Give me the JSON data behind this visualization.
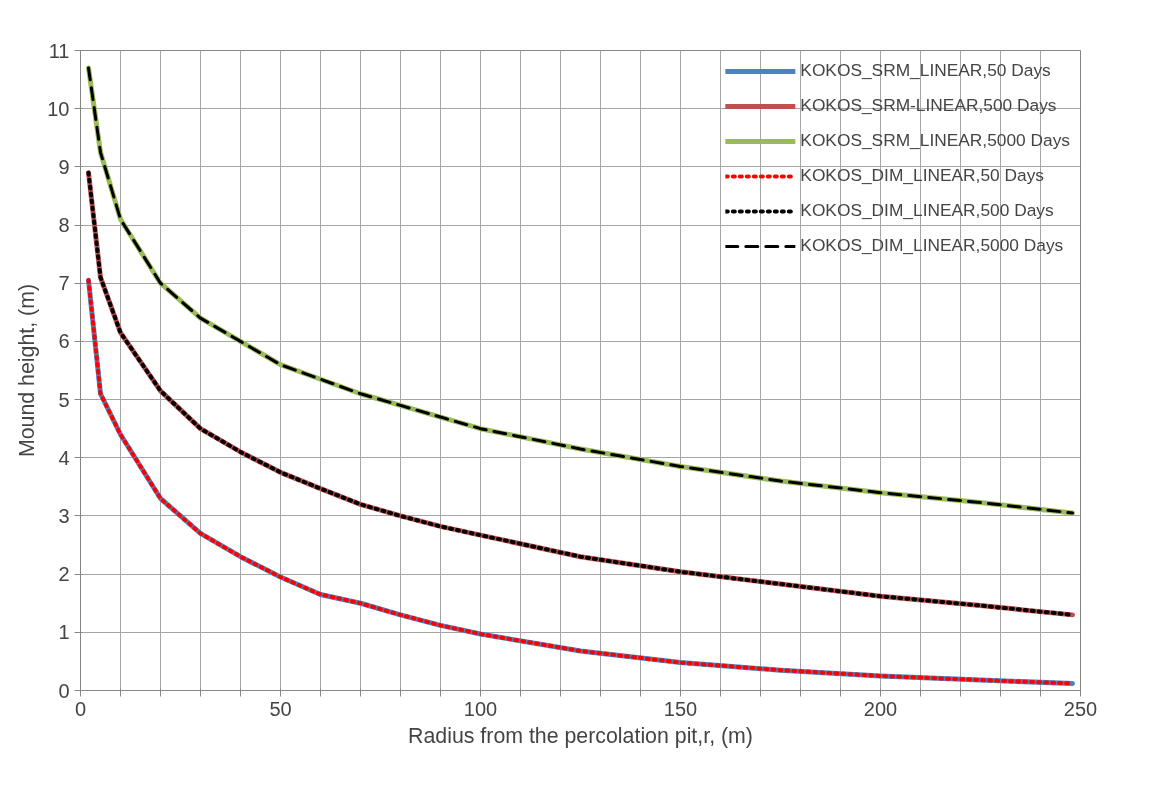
{
  "chart_data": {
    "type": "line",
    "xlabel": "Radius from the percolation pit,r, (m)",
    "ylabel": "Mound height, (m)",
    "x": [
      2,
      5,
      10,
      20,
      30,
      40,
      50,
      60,
      70,
      80,
      90,
      100,
      125,
      150,
      175,
      200,
      225,
      248
    ],
    "series": [
      {
        "name": "KOKOS_SRM_LINEAR,50 Days",
        "color": "#4f81bd",
        "line_style": "solid",
        "values": [
          7.05,
          5.1,
          4.4,
          3.3,
          2.7,
          2.3,
          1.95,
          1.65,
          1.5,
          1.3,
          1.12,
          0.97,
          0.68,
          0.48,
          0.35,
          0.25,
          0.18,
          0.12
        ]
      },
      {
        "name": "KOKOS_SRM-LINEAR,500 Days",
        "color": "#c0504d",
        "line_style": "solid",
        "values": [
          8.9,
          7.1,
          6.15,
          5.15,
          4.5,
          4.1,
          3.75,
          3.47,
          3.2,
          3.0,
          2.82,
          2.67,
          2.3,
          2.04,
          1.83,
          1.62,
          1.46,
          1.3
        ]
      },
      {
        "name": "KOKOS_SRM_LINEAR,5000 Days",
        "color": "#9bbb59",
        "line_style": "solid",
        "values": [
          10.7,
          9.25,
          8.1,
          7.0,
          6.4,
          6.0,
          5.6,
          5.35,
          5.1,
          4.9,
          4.7,
          4.5,
          4.15,
          3.85,
          3.6,
          3.4,
          3.23,
          3.05
        ]
      },
      {
        "name": "KOKOS_DIM_LINEAR,50 Days",
        "color": "#ff0000",
        "line_style": "dotted",
        "values": [
          7.05,
          5.1,
          4.4,
          3.3,
          2.7,
          2.3,
          1.95,
          1.65,
          1.5,
          1.3,
          1.12,
          0.97,
          0.68,
          0.48,
          0.35,
          0.25,
          0.18,
          0.12
        ]
      },
      {
        "name": "KOKOS_DIM_LINEAR,500 Days",
        "color": "#000000",
        "line_style": "dotted",
        "values": [
          8.9,
          7.1,
          6.15,
          5.15,
          4.5,
          4.1,
          3.75,
          3.47,
          3.2,
          3.0,
          2.82,
          2.67,
          2.3,
          2.04,
          1.83,
          1.62,
          1.46,
          1.3
        ]
      },
      {
        "name": "KOKOS_DIM_LINEAR,5000 Days",
        "color": "#000000",
        "line_style": "dashed",
        "values": [
          10.7,
          9.25,
          8.1,
          7.0,
          6.4,
          6.0,
          5.6,
          5.35,
          5.1,
          4.9,
          4.7,
          4.5,
          4.15,
          3.85,
          3.6,
          3.4,
          3.23,
          3.05
        ]
      }
    ],
    "xlim": [
      0,
      250
    ],
    "ylim": [
      0,
      11
    ],
    "xticks": [
      0,
      {
        "value": 10,
        "label": null
      },
      {
        "value": 20,
        "label": null
      },
      {
        "value": 30,
        "label": null
      },
      {
        "value": 40,
        "label": null
      },
      50,
      {
        "value": 60,
        "label": null
      },
      {
        "value": 70,
        "label": null
      },
      {
        "value": 80,
        "label": null
      },
      {
        "value": 90,
        "label": null
      },
      100,
      {
        "value": 110,
        "label": null
      },
      {
        "value": 120,
        "label": null
      },
      {
        "value": 130,
        "label": null
      },
      {
        "value": 140,
        "label": null
      },
      150,
      {
        "value": 160,
        "label": null
      },
      {
        "value": 170,
        "label": null
      },
      {
        "value": 180,
        "label": null
      },
      {
        "value": 190,
        "label": null
      },
      200,
      {
        "value": 210,
        "label": null
      },
      {
        "value": 220,
        "label": null
      },
      {
        "value": 230,
        "label": null
      },
      {
        "value": 240,
        "label": null
      },
      250
    ],
    "yticks": [
      0,
      1,
      2,
      3,
      4,
      5,
      6,
      7,
      8,
      9,
      10,
      11
    ],
    "grid": true,
    "legend": "top right",
    "marker": "none"
  }
}
